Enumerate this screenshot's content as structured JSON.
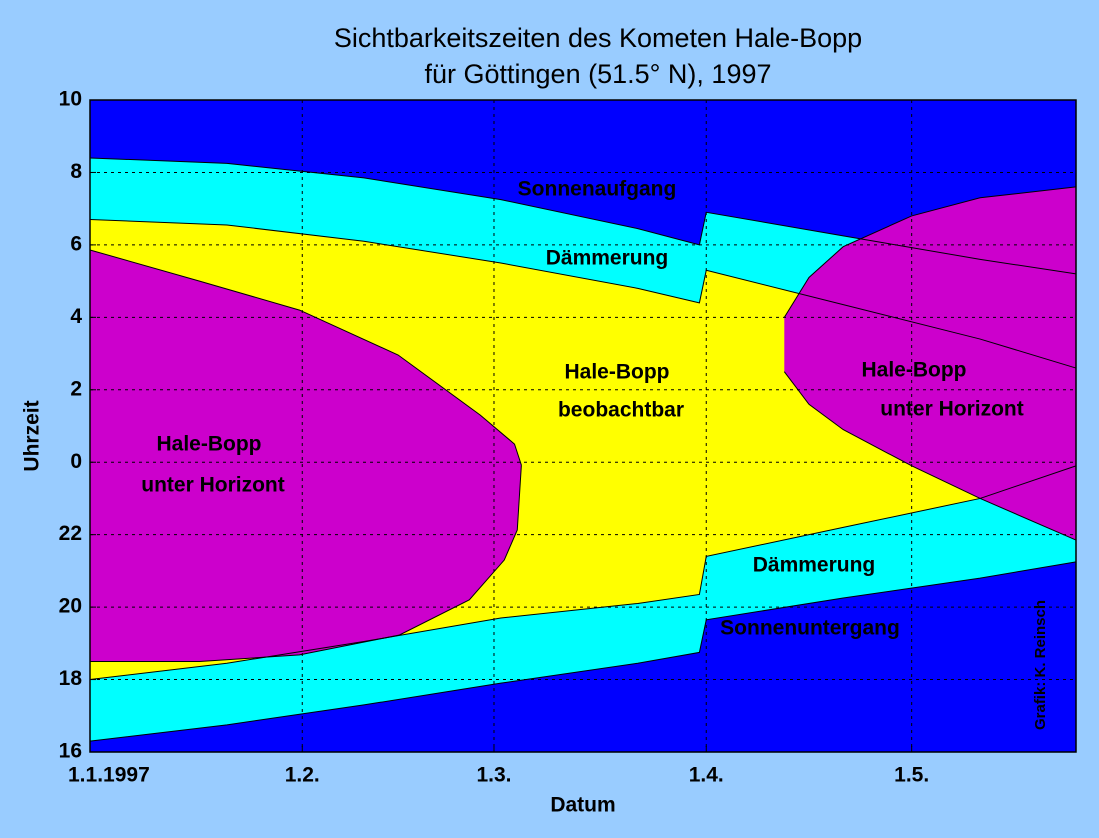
{
  "chart_data": {
    "type": "area",
    "title": "Sichtbarkeitszeiten des Kometen Hale-Bopp",
    "subtitle": "für Göttingen (51.5° N), 1997",
    "xlabel": "Datum",
    "ylabel": "Uhrzeit",
    "credit": "Grafik: K. Reinsch",
    "background": "#0000ff",
    "grid": true,
    "xlim": [
      0,
      144
    ],
    "xticks": [
      {
        "value": 0,
        "label": "1.1.1997"
      },
      {
        "value": 31,
        "label": "1.2."
      },
      {
        "value": 59,
        "label": "1.3."
      },
      {
        "value": 90,
        "label": "1.4."
      },
      {
        "value": 120,
        "label": "1.5."
      }
    ],
    "ylim": [
      16,
      34
    ],
    "yticks": [
      16,
      18,
      20,
      22,
      {
        "value": 24,
        "label": "0"
      },
      {
        "value": 26,
        "label": "2"
      },
      {
        "value": 28,
        "label": "4"
      },
      {
        "value": 30,
        "label": "6"
      },
      {
        "value": 32,
        "label": "8"
      },
      {
        "value": 34,
        "label": "10"
      }
    ],
    "bands": [
      {
        "color": "#00ffff",
        "upper": {
          "x": [
            0,
            20,
            40,
            60,
            80,
            89,
            90,
            110,
            130,
            144
          ],
          "values": [
            32.4,
            32.25,
            31.85,
            31.25,
            30.45,
            30.0,
            30.9,
            30.25,
            29.6,
            29.2
          ]
        },
        "lower": {
          "x": [
            0,
            20,
            40,
            60,
            80,
            89,
            90,
            110,
            130,
            144
          ],
          "values": [
            16.3,
            16.75,
            17.3,
            17.9,
            18.45,
            18.75,
            19.65,
            20.25,
            20.8,
            21.25
          ]
        }
      },
      {
        "color": "#ffff00",
        "upper": {
          "x": [
            0,
            20,
            40,
            60,
            80,
            89,
            90,
            110,
            130,
            144
          ],
          "values": [
            30.7,
            30.55,
            30.1,
            29.5,
            28.8,
            28.4,
            29.3,
            28.35,
            27.4,
            26.6
          ]
        },
        "lower": {
          "x": [
            0,
            20,
            40,
            60,
            80,
            89,
            90,
            110,
            130,
            144
          ],
          "values": [
            18.0,
            18.45,
            19.05,
            19.7,
            20.1,
            20.35,
            21.4,
            22.2,
            23.0,
            23.9
          ]
        }
      },
      {
        "color": "#cc00cc",
        "upper": {
          "x": [
            0,
            16,
            30.6,
            45,
            57,
            62,
            63
          ],
          "values": [
            29.86,
            29.0,
            28.2,
            26.96,
            25.3,
            24.5,
            23.92
          ]
        },
        "lower": {
          "x": [
            0,
            16,
            30.6,
            45.2,
            55.4,
            60.5,
            62.4,
            63
          ],
          "values": [
            18.5,
            18.5,
            18.68,
            19.23,
            20.2,
            21.3,
            22.13,
            23.92
          ]
        }
      },
      {
        "color": "#cc00cc",
        "upper": {
          "x": [
            101.4,
            105,
            110,
            120,
            130,
            144
          ],
          "values": [
            28.0,
            29.1,
            29.95,
            30.8,
            31.3,
            31.6
          ]
        },
        "lower": {
          "x": [
            101.4,
            105,
            110,
            120,
            130,
            144
          ],
          "values": [
            26.5,
            25.6,
            24.9,
            23.9,
            23.0,
            21.85
          ]
        }
      }
    ],
    "annotations": [
      "Sonnenaufgang",
      "Dämmerung",
      "Hale-Bopp",
      "beobachtbar",
      "Hale-Bopp",
      "unter Horizont",
      "Hale-Bopp",
      "unter Horizont",
      "Dämmerung",
      "Sonnenuntergang"
    ]
  }
}
